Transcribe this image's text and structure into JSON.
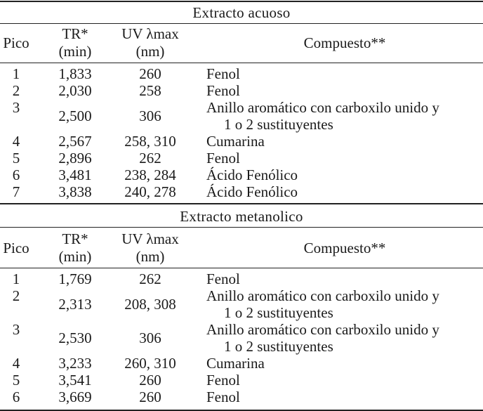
{
  "table": {
    "headers": {
      "pico": "Pico",
      "tr_line1": "TR*",
      "tr_line2": "(min)",
      "uv_line1": "UV λmax",
      "uv_line2": "(nm)",
      "compuesto": "Compuesto**"
    },
    "sections": [
      {
        "title": "Extracto acuoso",
        "rows": [
          {
            "pico": "1",
            "tr": "1,833",
            "uv": "260",
            "compuesto": [
              "Fenol"
            ]
          },
          {
            "pico": "2",
            "tr": "2,030",
            "uv": "258",
            "compuesto": [
              "Fenol"
            ]
          },
          {
            "pico": "3",
            "tr": "2,500",
            "uv": "306",
            "compuesto": [
              "Anillo aromático con carboxilo unido y",
              "1 o 2 sustituyentes"
            ]
          },
          {
            "pico": "4",
            "tr": "2,567",
            "uv": "258, 310",
            "compuesto": [
              "Cumarina"
            ]
          },
          {
            "pico": "5",
            "tr": "2,896",
            "uv": "262",
            "compuesto": [
              "Fenol"
            ]
          },
          {
            "pico": "6",
            "tr": "3,481",
            "uv": "238, 284",
            "compuesto": [
              "Ácido Fenólico"
            ]
          },
          {
            "pico": "7",
            "tr": "3,838",
            "uv": "240, 278",
            "compuesto": [
              "Ácido Fenólico"
            ]
          }
        ]
      },
      {
        "title": "Extracto metanolico",
        "rows": [
          {
            "pico": "1",
            "tr": "1,769",
            "uv": "262",
            "compuesto": [
              "Fenol"
            ]
          },
          {
            "pico": "2",
            "tr": "2,313",
            "uv": "208, 308",
            "compuesto": [
              "Anillo aromático con carboxilo unido y",
              "1 o 2 sustituyentes"
            ]
          },
          {
            "pico": "3",
            "tr": "2,530",
            "uv": "306",
            "compuesto": [
              "Anillo aromático con carboxilo unido y",
              "1 o 2 sustituyentes"
            ]
          },
          {
            "pico": "4",
            "tr": "3,233",
            "uv": "260, 310",
            "compuesto": [
              "Cumarina"
            ]
          },
          {
            "pico": "5",
            "tr": "3,541",
            "uv": "260",
            "compuesto": [
              "Fenol"
            ]
          },
          {
            "pico": "6",
            "tr": "3,669",
            "uv": "260",
            "compuesto": [
              "Fenol"
            ]
          }
        ]
      }
    ]
  }
}
